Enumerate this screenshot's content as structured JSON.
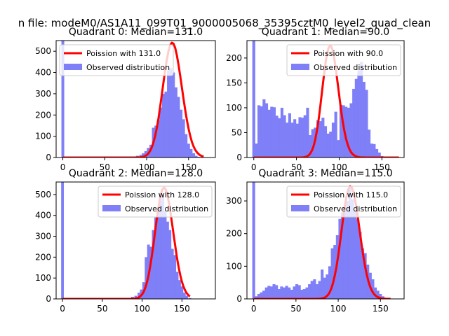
{
  "suptitle": "n file: modeM0/AS1A11_099T01_9000005068_35395cztM0_level2_quad_clean",
  "colors": {
    "poisson": "#ff0000",
    "observed": "#7f7ff8",
    "axis": "#000000",
    "background": "#ffffff"
  },
  "chart_data": [
    {
      "type": "bar",
      "title": "Quadrant 0: Median=131.0",
      "median": 131.0,
      "xlim": [
        -8,
        182
      ],
      "ylim": [
        0,
        550
      ],
      "xticks": [
        0,
        50,
        100,
        150
      ],
      "yticks": [
        0,
        100,
        200,
        300,
        400,
        500
      ],
      "legend": {
        "position": "top-left",
        "entries": [
          "Poission with 131.0",
          "Observed distribution"
        ]
      },
      "bin_width": 3.4,
      "histogram": {
        "x": [
          0,
          85,
          89,
          93,
          96,
          99,
          102,
          105,
          108,
          111,
          114,
          117,
          120,
          123,
          126,
          129,
          132,
          135,
          138,
          141,
          144,
          147,
          150,
          153,
          156,
          159,
          162
        ],
        "y": [
          550,
          3,
          8,
          12,
          20,
          30,
          45,
          60,
          140,
          150,
          175,
          235,
          300,
          310,
          410,
          420,
          400,
          330,
          285,
          225,
          180,
          110,
          65,
          40,
          20,
          8,
          3
        ]
      },
      "poisson": {
        "lambda": 131.0,
        "scale": 540,
        "xmax": 168
      }
    },
    {
      "type": "bar",
      "title": "Quadrant 1: Median=90.0",
      "median": 90.0,
      "xlim": [
        -8,
        176
      ],
      "ylim": [
        0,
        235
      ],
      "xticks": [
        0,
        50,
        100,
        150
      ],
      "yticks": [
        0,
        50,
        100,
        150,
        200
      ],
      "legend": {
        "position": "top-right",
        "entries": [
          "Poission with 90.0",
          "Observed distribution"
        ]
      },
      "bin_width": 3.4,
      "histogram": {
        "x": [
          0,
          3,
          6,
          9,
          12,
          15,
          18,
          21,
          24,
          27,
          30,
          33,
          36,
          39,
          42,
          45,
          48,
          51,
          54,
          57,
          60,
          63,
          66,
          69,
          72,
          75,
          78,
          81,
          84,
          87,
          90,
          93,
          96,
          99,
          102,
          105,
          108,
          111,
          114,
          117,
          120,
          123,
          126,
          129,
          132,
          135,
          138,
          141,
          144,
          147,
          150
        ],
        "y": [
          235,
          28,
          105,
          103,
          117,
          109,
          96,
          102,
          101,
          84,
          79,
          100,
          85,
          70,
          89,
          70,
          77,
          68,
          81,
          80,
          85,
          100,
          45,
          57,
          60,
          75,
          73,
          80,
          63,
          48,
          52,
          70,
          92,
          35,
          106,
          105,
          102,
          100,
          109,
          138,
          158,
          175,
          192,
          152,
          136,
          56,
          28,
          27,
          17,
          10,
          3
        ]
      },
      "poisson": {
        "lambda": 90.0,
        "scale": 225,
        "xmax": 170
      }
    },
    {
      "type": "bar",
      "title": "Quadrant 2: Median=128.0",
      "median": 128.0,
      "xlim": [
        -8,
        192
      ],
      "ylim": [
        0,
        560
      ],
      "xticks": [
        0,
        50,
        100,
        150
      ],
      "yticks": [
        0,
        100,
        200,
        300,
        400,
        500
      ],
      "legend": {
        "position": "top-right",
        "entries": [
          "Poission with 128.0",
          "Observed distribution"
        ]
      },
      "bin_width": 3.4,
      "histogram": {
        "x": [
          0,
          84,
          88,
          92,
          96,
          99,
          102,
          105,
          108,
          111,
          114,
          117,
          120,
          123,
          126,
          129,
          132,
          135,
          138,
          141,
          144,
          147,
          150,
          153,
          156,
          160
        ],
        "y": [
          560,
          3,
          10,
          15,
          30,
          45,
          80,
          200,
          260,
          250,
          330,
          390,
          440,
          470,
          500,
          420,
          370,
          330,
          240,
          210,
          130,
          90,
          60,
          30,
          15,
          4
        ]
      },
      "poisson": {
        "lambda": 128.0,
        "scale": 533,
        "xmax": 160
      }
    },
    {
      "type": "bar",
      "title": "Quadrant 3: Median=115.0",
      "median": 115.0,
      "xlim": [
        -8,
        178
      ],
      "ylim": [
        0,
        358
      ],
      "xticks": [
        0,
        50,
        100,
        150
      ],
      "yticks": [
        0,
        100,
        200,
        300
      ],
      "legend": {
        "position": "top-right",
        "entries": [
          "Poission with 115.0",
          "Observed distribution"
        ]
      },
      "bin_width": 3.4,
      "histogram": {
        "x": [
          0,
          3,
          6,
          9,
          12,
          15,
          18,
          21,
          24,
          27,
          30,
          33,
          36,
          39,
          42,
          45,
          48,
          51,
          54,
          57,
          60,
          63,
          66,
          69,
          72,
          75,
          78,
          81,
          84,
          87,
          90,
          93,
          96,
          99,
          102,
          105,
          108,
          111,
          114,
          117,
          120,
          123,
          126,
          129,
          132,
          135,
          138,
          141,
          144,
          147,
          150,
          153,
          156
        ],
        "y": [
          358,
          8,
          15,
          20,
          25,
          35,
          40,
          38,
          45,
          42,
          30,
          38,
          35,
          40,
          35,
          28,
          38,
          45,
          42,
          28,
          30,
          35,
          45,
          55,
          60,
          45,
          55,
          90,
          65,
          75,
          100,
          155,
          165,
          195,
          245,
          265,
          280,
          300,
          345,
          305,
          270,
          245,
          205,
          155,
          140,
          105,
          80,
          60,
          35,
          25,
          15,
          8,
          3
        ]
      },
      "poisson": {
        "lambda": 115.0,
        "scale": 345,
        "xmax": 162
      }
    }
  ]
}
